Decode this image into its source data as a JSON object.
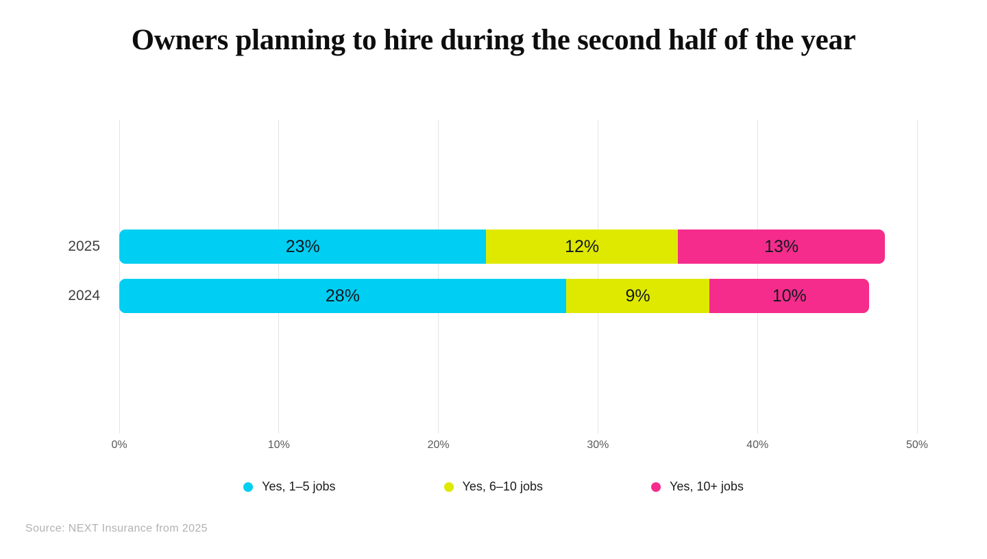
{
  "title": "Owners planning to hire during the second half of the year",
  "source_note": "Source: NEXT Insurance from 2025",
  "colors": {
    "cyan": "#00cef2",
    "chartreuse": "#dfe900",
    "magenta": "#f52c8c",
    "grid": "#e4e4e4",
    "bar_label": "#10181f",
    "axis_text": "#585858",
    "row_label_text": "#3f3f3f",
    "legend_text": "#1b1b1b",
    "source_text": "#b3b1b1"
  },
  "chart_data": {
    "type": "bar",
    "orientation": "horizontal",
    "stacked": true,
    "title": "Owners planning to hire during the second half of the year",
    "categories": [
      "2025",
      "2024"
    ],
    "series": [
      {
        "name": "Yes, 1–5 jobs",
        "color": "#00cef2",
        "values": [
          23,
          28
        ]
      },
      {
        "name": "Yes, 6–10 jobs",
        "color": "#dfe900",
        "values": [
          12,
          9
        ]
      },
      {
        "name": "Yes, 10+ jobs",
        "color": "#f52c8c",
        "values": [
          13,
          10
        ]
      }
    ],
    "value_suffix": "%",
    "xlim": [
      0,
      50
    ],
    "x_ticks": [
      "0%",
      "10%",
      "20%",
      "30%",
      "40%",
      "50%"
    ],
    "xlabel": "",
    "ylabel": "",
    "grid": true,
    "legend_position": "bottom"
  }
}
